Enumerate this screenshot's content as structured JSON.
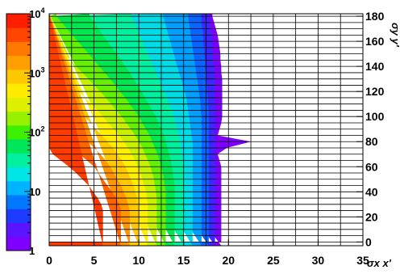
{
  "chart_data": {
    "type": "heatmap",
    "title": "",
    "xlabel": "σx x'",
    "ylabel": "σy y'",
    "xlim": [
      0,
      35
    ],
    "ylim": [
      -3,
      182
    ],
    "x_ticks": [
      0,
      5,
      10,
      15,
      20,
      25,
      30,
      35
    ],
    "y_ticks": [
      0,
      20,
      40,
      60,
      80,
      100,
      120,
      140,
      160,
      180
    ],
    "grid": true,
    "x_cell_edges": [
      0,
      2.5,
      5,
      7.5,
      10,
      12.5,
      15,
      17.5,
      20,
      22.5,
      25,
      27.5,
      30,
      32.5,
      35
    ],
    "y_cell_rows": [
      0,
      5,
      10,
      15,
      20,
      25,
      30,
      35,
      40,
      45,
      50,
      55,
      60,
      65,
      70,
      75,
      80,
      85,
      90,
      95,
      100,
      105,
      110,
      115,
      120,
      125,
      130,
      135,
      140,
      145,
      150,
      155,
      160,
      165,
      170,
      175,
      180
    ],
    "colorbar": {
      "scale": "log",
      "min": 1,
      "max": 10000,
      "ticks": [
        {
          "value": 1,
          "label": "1"
        },
        {
          "value": 10,
          "label": "10"
        },
        {
          "value": 100,
          "label": "10",
          "exp": "2"
        },
        {
          "value": 1000,
          "label": "10",
          "exp": "3"
        },
        {
          "value": 10000,
          "label": "10",
          "exp": "4"
        }
      ],
      "colors": [
        "#7F00FF",
        "#5A14FF",
        "#1E3CFF",
        "#0078FF",
        "#00B4FF",
        "#00E6E6",
        "#00F0A0",
        "#00E65A",
        "#3CF000",
        "#96F000",
        "#DCF000",
        "#FFEB00",
        "#FFC800",
        "#FFA000",
        "#FF7800",
        "#FF4600",
        "#FF1E00"
      ]
    },
    "contour_boundaries": [
      {
        "min": 10000,
        "x_edge_by_row": [
          20.0,
          20.0,
          20.0,
          20.0,
          20.0,
          20.0,
          20.0,
          20.0,
          20.0,
          20.0,
          20.0,
          20.0,
          20.0,
          20.0,
          20.0,
          20.0,
          20.0,
          20.0,
          20.0,
          20.0,
          20.0,
          20.0,
          20.0,
          20.0,
          20.0,
          20.0,
          20.0,
          20.0,
          20.0,
          20.0,
          20.0,
          20.0,
          20.0,
          20.0,
          20.0,
          20.0,
          20.0
        ]
      },
      {
        "min": 5620,
        "x_edge_by_row": [
          6.0,
          6.0,
          6.0,
          6.0,
          6.0,
          6.0,
          5.8,
          5.4,
          4.9,
          4.4,
          3.7,
          3.0,
          2.2,
          1.3,
          0.4,
          0,
          0,
          0,
          0,
          0,
          0,
          0,
          0,
          0,
          0,
          0,
          0,
          0,
          0,
          0,
          0,
          0,
          0,
          0,
          0,
          0,
          0
        ]
      },
      {
        "min": 3160,
        "x_edge_by_row": [
          8.0,
          8.0,
          8.0,
          8.0,
          8.0,
          8.0,
          7.8,
          7.5,
          7.0,
          6.5,
          6.0,
          5.5,
          5.0,
          4.2,
          3.4,
          2.6,
          1.8,
          1.0,
          0.2,
          0,
          0,
          0,
          0,
          0,
          0,
          0,
          0,
          0,
          0,
          0,
          0,
          0,
          0,
          0,
          0,
          0,
          0
        ]
      },
      {
        "min": 1780,
        "x_edge_by_row": [
          9.0,
          9.0,
          9.0,
          9.0,
          9.0,
          9.0,
          8.8,
          8.6,
          8.3,
          8.0,
          7.6,
          7.2,
          6.8,
          6.3,
          5.7,
          5.0,
          4.3,
          3.6,
          2.9,
          2.2,
          1.5,
          0.8,
          0.2,
          0,
          0,
          0,
          0,
          0,
          0,
          0,
          0,
          0,
          0,
          0,
          0,
          0,
          0
        ]
      },
      {
        "min": 1000,
        "x_edge_by_row": [
          10.0,
          10.0,
          10.0,
          10.0,
          10.0,
          10.0,
          9.9,
          9.8,
          9.6,
          9.4,
          9.1,
          8.8,
          8.5,
          8.1,
          7.6,
          7.1,
          6.5,
          5.9,
          5.2,
          4.6,
          3.9,
          3.2,
          2.5,
          1.8,
          1.0,
          0.3,
          0,
          0,
          0,
          0,
          0,
          0,
          0,
          0,
          0,
          0,
          0
        ]
      },
      {
        "min": 562,
        "x_edge_by_row": [
          11.0,
          11.0,
          11.0,
          11.0,
          11.0,
          11.0,
          11.0,
          10.9,
          10.8,
          10.6,
          10.4,
          10.2,
          9.9,
          9.6,
          9.2,
          8.8,
          8.3,
          7.8,
          7.2,
          6.6,
          6.0,
          5.4,
          4.7,
          4.0,
          3.3,
          2.6,
          1.9,
          1.2,
          0.5,
          0,
          0,
          0,
          0,
          0,
          0,
          0,
          0
        ]
      },
      {
        "min": 316,
        "x_edge_by_row": [
          12.0,
          12.0,
          12.0,
          12.0,
          12.0,
          12.0,
          12.0,
          12.0,
          11.9,
          11.8,
          11.7,
          11.5,
          11.3,
          11.0,
          10.7,
          10.4,
          10.0,
          9.6,
          9.1,
          8.6,
          8.1,
          7.5,
          6.9,
          6.3,
          5.7,
          5.0,
          4.4,
          3.7,
          3.0,
          2.4,
          1.7,
          1.0,
          0.4,
          0,
          0,
          0,
          0
        ]
      },
      {
        "min": 178,
        "x_edge_by_row": [
          13.0,
          13.0,
          13.0,
          13.0,
          13.0,
          13.0,
          13.0,
          13.0,
          13.0,
          12.9,
          12.8,
          12.7,
          12.5,
          12.3,
          12.1,
          11.8,
          11.5,
          11.2,
          10.8,
          10.4,
          10.0,
          9.5,
          9.0,
          8.5,
          7.9,
          7.4,
          6.8,
          6.2,
          5.6,
          5.0,
          4.4,
          3.8,
          3.2,
          2.6,
          2.0,
          1.4,
          0.8
        ]
      },
      {
        "min": 100,
        "x_edge_by_row": [
          14.0,
          14.0,
          14.0,
          14.0,
          14.0,
          14.0,
          14.0,
          14.0,
          14.0,
          14.0,
          13.9,
          13.8,
          13.7,
          13.6,
          13.4,
          13.2,
          13.0,
          12.8,
          12.5,
          12.2,
          11.9,
          11.5,
          11.1,
          10.7,
          10.3,
          9.9,
          9.4,
          9.0,
          8.5,
          8.0,
          7.5,
          7.0,
          6.5,
          6.0,
          5.5,
          5.0,
          4.5
        ]
      },
      {
        "min": 56,
        "x_edge_by_row": [
          15.0,
          15.0,
          15.0,
          15.0,
          15.0,
          15.0,
          15.0,
          15.0,
          15.0,
          15.0,
          15.0,
          15.0,
          15.0,
          14.9,
          14.8,
          14.7,
          14.6,
          14.5,
          14.3,
          14.1,
          13.9,
          13.7,
          13.4,
          13.1,
          12.8,
          12.5,
          12.2,
          11.9,
          11.6,
          11.3,
          11.0,
          10.7,
          10.4,
          10.1,
          9.8,
          9.5,
          9.2
        ]
      },
      {
        "min": 31.6,
        "x_edge_by_row": [
          16.0,
          16.0,
          16.0,
          16.0,
          16.0,
          16.0,
          16.0,
          16.0,
          16.0,
          16.0,
          16.0,
          16.0,
          16.0,
          16.0,
          16.0,
          16.0,
          16.0,
          15.9,
          15.8,
          15.7,
          15.6,
          15.5,
          15.4,
          15.3,
          15.1,
          14.9,
          14.7,
          14.5,
          14.3,
          14.1,
          13.9,
          13.7,
          13.5,
          13.3,
          13.1,
          12.9,
          12.7
        ]
      },
      {
        "min": 17.8,
        "x_edge_by_row": [
          17.0,
          17.0,
          17.0,
          17.0,
          17.0,
          17.0,
          17.0,
          17.0,
          17.0,
          17.0,
          17.0,
          17.0,
          17.0,
          17.0,
          17.0,
          17.0,
          17.0,
          17.0,
          17.0,
          17.0,
          17.0,
          16.9,
          16.9,
          16.8,
          16.7,
          16.6,
          16.5,
          16.4,
          16.3,
          16.2,
          16.1,
          16.0,
          15.9,
          15.8,
          15.7,
          15.6,
          15.5
        ]
      },
      {
        "min": 10,
        "x_edge_by_row": [
          17.8,
          17.8,
          17.8,
          17.8,
          17.8,
          17.8,
          17.8,
          17.8,
          17.8,
          17.8,
          17.8,
          17.8,
          17.8,
          17.8,
          17.8,
          17.8,
          17.8,
          17.8,
          17.8,
          17.8,
          17.8,
          17.8,
          17.7,
          17.7,
          17.6,
          17.6,
          17.5,
          17.5,
          17.4,
          17.4,
          17.3,
          17.3,
          17.2,
          17.2,
          17.1,
          17.0,
          17.0
        ]
      },
      {
        "min": 5.6,
        "x_edge_by_row": [
          18.5,
          18.5,
          18.5,
          18.5,
          18.5,
          18.5,
          18.5,
          18.5,
          18.5,
          18.5,
          18.5,
          18.5,
          18.5,
          18.5,
          18.5,
          18.5,
          18.5,
          18.5,
          18.5,
          18.5,
          18.5,
          18.5,
          18.5,
          18.5,
          18.5,
          18.5,
          18.5,
          18.4,
          18.4,
          18.3,
          18.3,
          18.2,
          18.2,
          18.1,
          18.0,
          17.9,
          17.8
        ]
      },
      {
        "min": 1,
        "x_edge_by_row": [
          19.2,
          19.2,
          19.2,
          19.2,
          19.2,
          19.2,
          19.2,
          19.2,
          19.2,
          19.2,
          19.2,
          19.2,
          19.2,
          19.0,
          18.8,
          19.8,
          19.0,
          18.8,
          19.0,
          19.2,
          19.3,
          19.3,
          19.3,
          19.3,
          19.3,
          19.3,
          19.3,
          19.2,
          19.2,
          19.1,
          19.1,
          19.0,
          18.9,
          18.8,
          18.6,
          18.4,
          18.2
        ]
      }
    ],
    "spike": {
      "x_max": 22.5,
      "y": 80
    }
  }
}
